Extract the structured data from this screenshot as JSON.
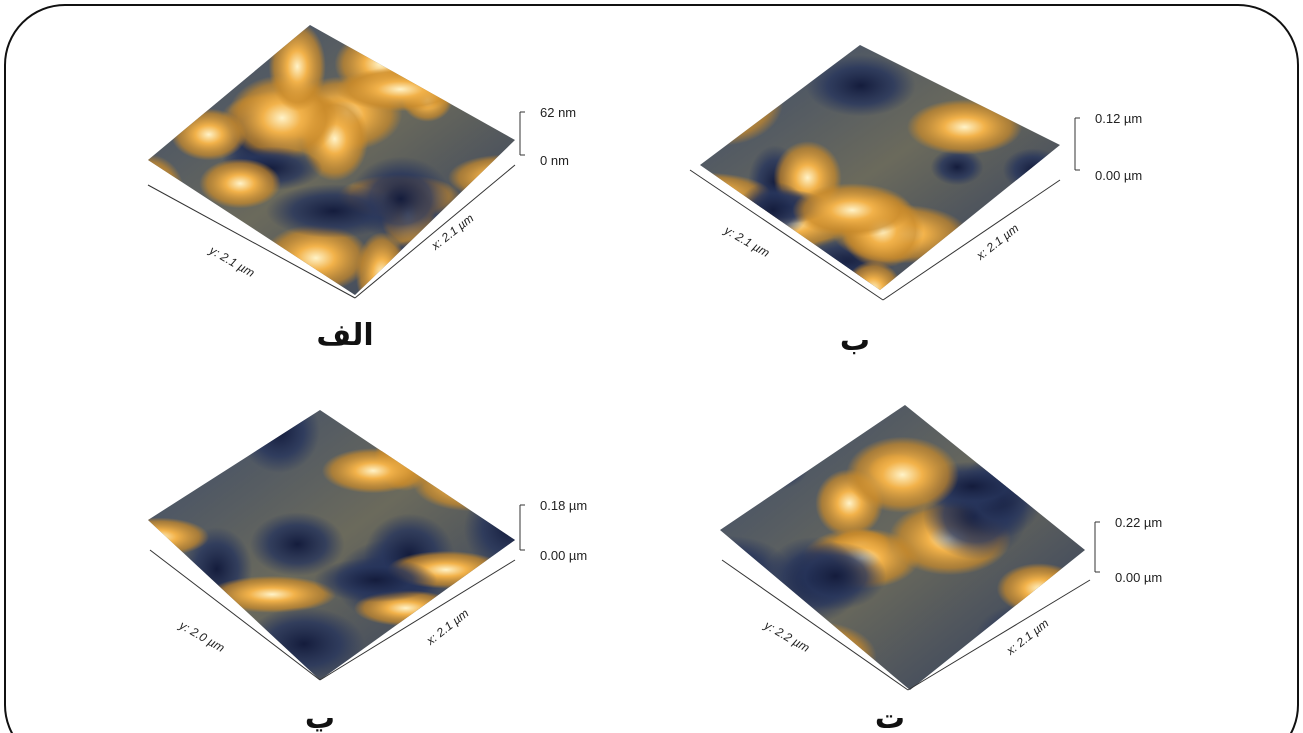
{
  "panels": [
    {
      "label": "الف",
      "z_top": "62 nm",
      "z_bottom": "0 nm",
      "x_axis": "x: 2.1 µm",
      "y_axis": "y: 2.1 µm"
    },
    {
      "label": "ب",
      "z_top": "0.12 µm",
      "z_bottom": "0.00 µm",
      "x_axis": "x: 2.1 µm",
      "y_axis": "y: 2.1 µm"
    },
    {
      "label": "پ",
      "z_top": "0.18 µm",
      "z_bottom": "0.00 µm",
      "x_axis": "x: 2.1 µm",
      "y_axis": "y: 2.0 µm"
    },
    {
      "label": "ت",
      "z_top": "0.22 µm",
      "z_bottom": "0.00 µm",
      "x_axis": "x: 2.1 µm",
      "y_axis": "y: 2.2 µm"
    }
  ]
}
